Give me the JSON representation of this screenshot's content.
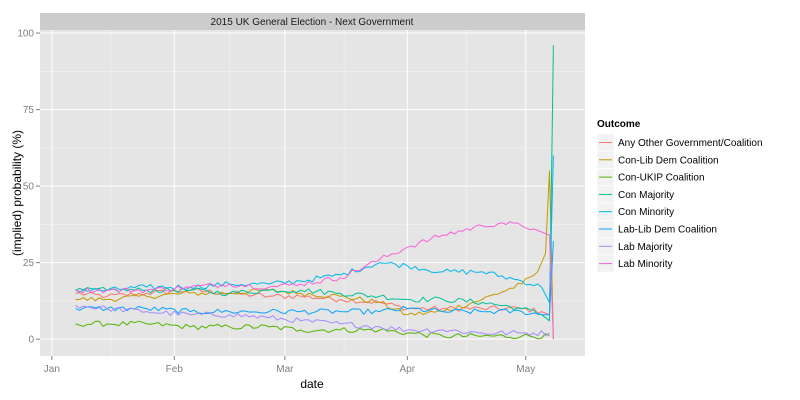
{
  "chart_data": {
    "type": "line",
    "title": "2015 UK General Election - Next Government",
    "xlabel": "date",
    "ylabel": "(implied) probability (%)",
    "x_ticks": [
      "Jan",
      "Feb",
      "Mar",
      "Apr",
      "May"
    ],
    "x_tick_dates": [
      "2015-01-01",
      "2015-02-01",
      "2015-03-01",
      "2015-04-01",
      "2015-05-01"
    ],
    "xlim": [
      "2014-12-29",
      "2015-05-16"
    ],
    "y_ticks": [
      0,
      25,
      50,
      75,
      100
    ],
    "ylim": [
      -5.5,
      101
    ],
    "grid": true,
    "legend": {
      "title": "Outcome",
      "position": "right"
    },
    "series": [
      {
        "name": "Any Other Government/Coalition",
        "color": "#F8766D",
        "points": [
          [
            "2015-01-07",
            15
          ],
          [
            "2015-01-15",
            14
          ],
          [
            "2015-01-25",
            15
          ],
          [
            "2015-02-05",
            16
          ],
          [
            "2015-02-15",
            15
          ],
          [
            "2015-02-25",
            14
          ],
          [
            "2015-03-05",
            14
          ],
          [
            "2015-03-15",
            13
          ],
          [
            "2015-03-25",
            12
          ],
          [
            "2015-04-01",
            10
          ],
          [
            "2015-04-10",
            10
          ],
          [
            "2015-04-20",
            10
          ],
          [
            "2015-04-30",
            10
          ],
          [
            "2015-05-05",
            9
          ],
          [
            "2015-05-07",
            8
          ]
        ]
      },
      {
        "name": "Con-Lib Dem Coalition",
        "color": "#C49A00",
        "points": [
          [
            "2015-01-07",
            13
          ],
          [
            "2015-01-15",
            13
          ],
          [
            "2015-01-25",
            14
          ],
          [
            "2015-02-05",
            15
          ],
          [
            "2015-02-15",
            15
          ],
          [
            "2015-02-25",
            16
          ],
          [
            "2015-03-05",
            15
          ],
          [
            "2015-03-15",
            14
          ],
          [
            "2015-03-25",
            12
          ],
          [
            "2015-04-01",
            8
          ],
          [
            "2015-04-10",
            9
          ],
          [
            "2015-04-20",
            13
          ],
          [
            "2015-04-30",
            18
          ],
          [
            "2015-05-04",
            22
          ],
          [
            "2015-05-06",
            28
          ],
          [
            "2015-05-07",
            55
          ],
          [
            "2015-05-08",
            0
          ]
        ]
      },
      {
        "name": "Con-UKIP Coalition",
        "color": "#53B400",
        "points": [
          [
            "2015-01-07",
            5
          ],
          [
            "2015-01-15",
            5
          ],
          [
            "2015-01-25",
            5
          ],
          [
            "2015-02-05",
            4
          ],
          [
            "2015-02-15",
            4
          ],
          [
            "2015-02-25",
            4
          ],
          [
            "2015-03-05",
            3
          ],
          [
            "2015-03-15",
            3
          ],
          [
            "2015-03-25",
            3
          ],
          [
            "2015-04-01",
            2
          ],
          [
            "2015-04-10",
            1
          ],
          [
            "2015-04-20",
            1
          ],
          [
            "2015-04-30",
            1
          ],
          [
            "2015-05-07",
            1
          ]
        ]
      },
      {
        "name": "Con Majority",
        "color": "#00C094",
        "points": [
          [
            "2015-01-07",
            16
          ],
          [
            "2015-01-15",
            16
          ],
          [
            "2015-01-25",
            16
          ],
          [
            "2015-02-05",
            16
          ],
          [
            "2015-02-15",
            15
          ],
          [
            "2015-02-25",
            16
          ],
          [
            "2015-03-05",
            16
          ],
          [
            "2015-03-15",
            15
          ],
          [
            "2015-03-25",
            14
          ],
          [
            "2015-04-01",
            13
          ],
          [
            "2015-04-10",
            13
          ],
          [
            "2015-04-20",
            12
          ],
          [
            "2015-04-30",
            10
          ],
          [
            "2015-05-05",
            8
          ],
          [
            "2015-05-07",
            6
          ],
          [
            "2015-05-08",
            96
          ]
        ]
      },
      {
        "name": "Con Minority",
        "color": "#00B6EB",
        "points": [
          [
            "2015-01-07",
            16
          ],
          [
            "2015-01-15",
            16
          ],
          [
            "2015-01-25",
            17
          ],
          [
            "2015-02-05",
            17
          ],
          [
            "2015-02-15",
            18
          ],
          [
            "2015-02-25",
            18
          ],
          [
            "2015-03-05",
            19
          ],
          [
            "2015-03-15",
            21
          ],
          [
            "2015-03-25",
            25
          ],
          [
            "2015-04-01",
            24
          ],
          [
            "2015-04-10",
            22
          ],
          [
            "2015-04-20",
            22
          ],
          [
            "2015-04-30",
            19
          ],
          [
            "2015-05-05",
            17
          ],
          [
            "2015-05-07",
            12
          ],
          [
            "2015-05-08",
            60
          ]
        ]
      },
      {
        "name": "Lab-Lib Dem Coalition",
        "color": "#06A4FF",
        "points": [
          [
            "2015-01-07",
            10
          ],
          [
            "2015-01-15",
            10
          ],
          [
            "2015-01-25",
            10
          ],
          [
            "2015-02-05",
            9
          ],
          [
            "2015-02-15",
            9
          ],
          [
            "2015-02-25",
            9
          ],
          [
            "2015-03-05",
            9
          ],
          [
            "2015-03-15",
            9
          ],
          [
            "2015-03-25",
            9
          ],
          [
            "2015-04-01",
            10
          ],
          [
            "2015-04-10",
            9
          ],
          [
            "2015-04-20",
            9
          ],
          [
            "2015-04-30",
            9
          ],
          [
            "2015-05-05",
            8
          ],
          [
            "2015-05-07",
            8
          ],
          [
            "2015-05-08",
            32
          ]
        ]
      },
      {
        "name": "Lab Majority",
        "color": "#A58AFF",
        "points": [
          [
            "2015-01-07",
            11
          ],
          [
            "2015-01-15",
            10
          ],
          [
            "2015-01-25",
            9
          ],
          [
            "2015-02-05",
            8
          ],
          [
            "2015-02-15",
            8
          ],
          [
            "2015-02-25",
            7
          ],
          [
            "2015-03-05",
            6
          ],
          [
            "2015-03-15",
            5
          ],
          [
            "2015-03-25",
            4
          ],
          [
            "2015-04-01",
            3
          ],
          [
            "2015-04-10",
            3
          ],
          [
            "2015-04-20",
            2
          ],
          [
            "2015-04-30",
            2
          ],
          [
            "2015-05-07",
            2
          ]
        ]
      },
      {
        "name": "Lab Minority",
        "color": "#FB61D7",
        "points": [
          [
            "2015-01-07",
            16
          ],
          [
            "2015-01-15",
            16
          ],
          [
            "2015-01-25",
            16
          ],
          [
            "2015-02-05",
            17
          ],
          [
            "2015-02-15",
            18
          ],
          [
            "2015-02-25",
            17
          ],
          [
            "2015-03-05",
            18
          ],
          [
            "2015-03-15",
            20
          ],
          [
            "2015-03-25",
            26
          ],
          [
            "2015-04-01",
            30
          ],
          [
            "2015-04-10",
            34
          ],
          [
            "2015-04-20",
            37
          ],
          [
            "2015-04-25",
            38
          ],
          [
            "2015-04-30",
            37
          ],
          [
            "2015-05-03",
            36
          ],
          [
            "2015-05-05",
            35
          ],
          [
            "2015-05-07",
            34
          ],
          [
            "2015-05-08",
            0
          ]
        ]
      }
    ]
  }
}
